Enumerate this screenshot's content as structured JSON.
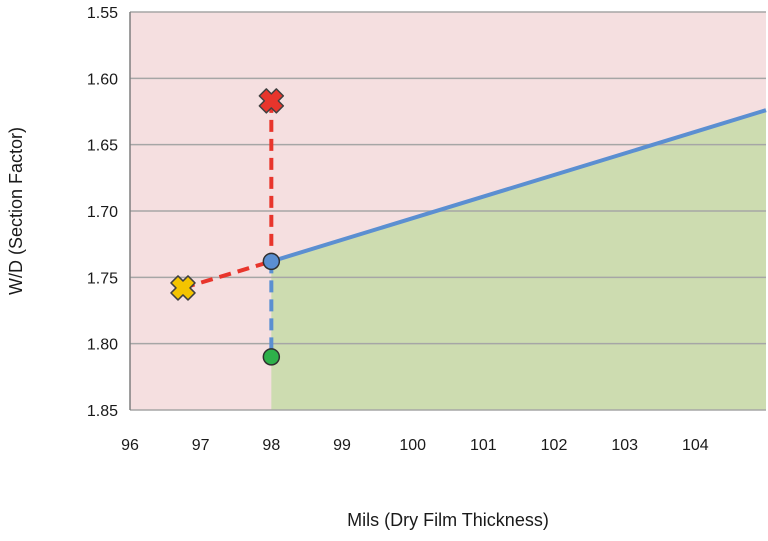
{
  "chart_data": {
    "type": "area",
    "title": "",
    "xlabel": "Mils (Dry Film Thickness)",
    "ylabel": "W/D (Section Factor)",
    "xlim": [
      96,
      105
    ],
    "ylim": [
      1.55,
      1.85
    ],
    "y_axis_inverted": true,
    "x_ticks": [
      96,
      97,
      98,
      99,
      100,
      101,
      102,
      103,
      104
    ],
    "y_ticks": [
      "1.55",
      "1.60",
      "1.65",
      "1.70",
      "1.75",
      "1.80",
      "1.85"
    ],
    "grid": "horizontal",
    "legend": "none",
    "boundary": {
      "x": [
        98,
        105
      ],
      "y": [
        1.738,
        1.624
      ]
    },
    "regions": [
      {
        "label": "",
        "color": "#f5dfe0"
      },
      {
        "label": "",
        "color": "#cddcb0"
      }
    ],
    "connectors": [
      {
        "from": [
          98,
          1.617
        ],
        "to": [
          98,
          1.738
        ],
        "color": "#e8352c",
        "style": "dashed"
      },
      {
        "from": [
          96.75,
          1.758
        ],
        "to": [
          98,
          1.738
        ],
        "color": "#e8352c",
        "style": "dashed"
      },
      {
        "from": [
          98,
          1.738
        ],
        "to": [
          98,
          1.81
        ],
        "color": "#5b8fd1",
        "style": "dashed"
      }
    ],
    "points": [
      {
        "x": 98,
        "y": 1.617,
        "marker": "cross",
        "color": "#e8352c"
      },
      {
        "x": 96.75,
        "y": 1.758,
        "marker": "cross",
        "color": "#f4c400"
      },
      {
        "x": 98,
        "y": 1.738,
        "marker": "circle",
        "color": "#5b8fd1"
      },
      {
        "x": 98,
        "y": 1.81,
        "marker": "circle",
        "color": "#2eb04a"
      }
    ],
    "colors": {
      "boundary_line": "#5b8fd1",
      "grid": "#a6a6a6",
      "axis": "#7f7f7f"
    }
  }
}
